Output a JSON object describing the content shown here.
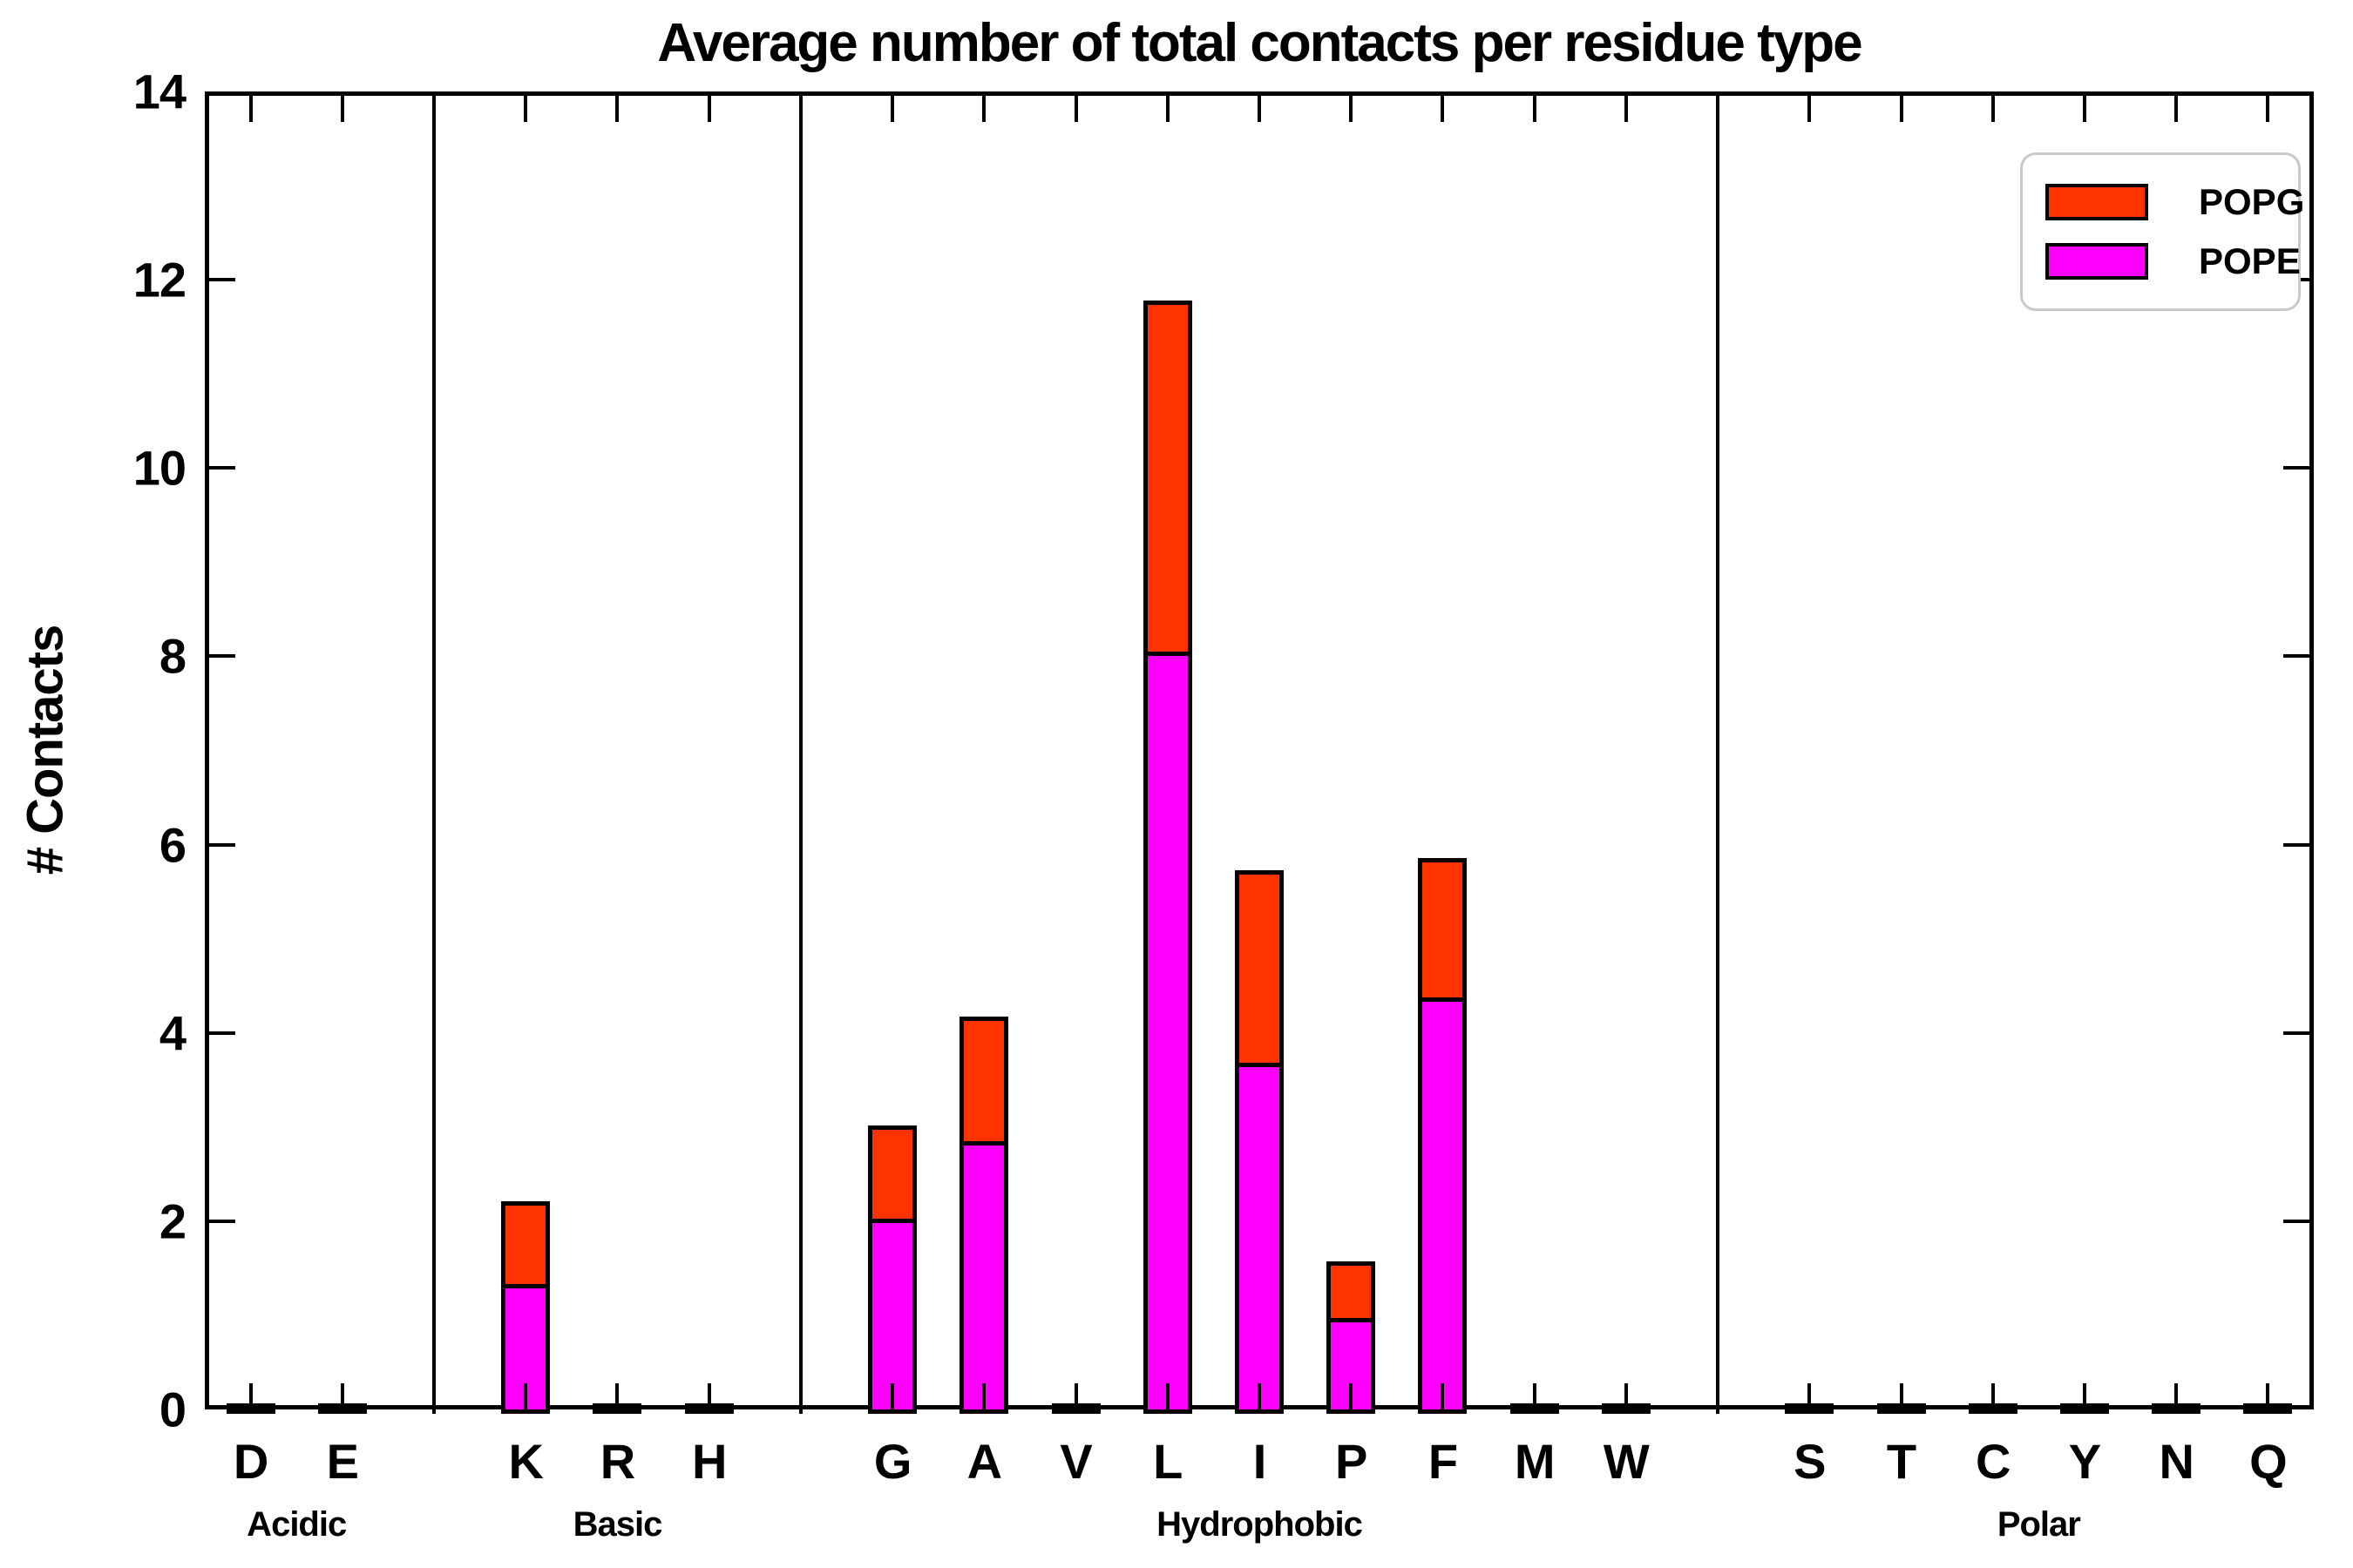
{
  "chart_data": {
    "type": "bar",
    "stacked": true,
    "title": "Average number of total contacts per residue type",
    "ylabel": "# Contacts",
    "xlabel": "",
    "ylim": [
      0,
      14
    ],
    "yticks": [
      0,
      2,
      4,
      6,
      8,
      10,
      12,
      14
    ],
    "grid": false,
    "background": "#FFFFFF",
    "axis_color": "#000000",
    "groups": [
      {
        "label": "Acidic",
        "residues": [
          "D",
          "E"
        ]
      },
      {
        "label": "Basic",
        "residues": [
          "K",
          "R",
          "H"
        ]
      },
      {
        "label": "Hydrophobic",
        "residues": [
          "G",
          "A",
          "V",
          "L",
          "I",
          "P",
          "F",
          "M",
          "W"
        ]
      },
      {
        "label": "Polar",
        "residues": [
          "S",
          "T",
          "C",
          "Y",
          "N",
          "Q"
        ]
      }
    ],
    "categories": [
      "D",
      "E",
      "K",
      "R",
      "H",
      "G",
      "A",
      "V",
      "L",
      "I",
      "P",
      "F",
      "M",
      "W",
      "S",
      "T",
      "C",
      "Y",
      "N",
      "Q"
    ],
    "series": [
      {
        "name": "POPE",
        "color": "#FF00FF",
        "values": [
          0.02,
          0.02,
          1.31,
          0.02,
          0.02,
          2.01,
          2.83,
          0.02,
          8.03,
          3.67,
          0.95,
          4.36,
          0.02,
          0.03,
          0.02,
          0.02,
          0.02,
          0.03,
          0.02,
          0.02
        ]
      },
      {
        "name": "POPG",
        "color": "#FF3300",
        "values": [
          0.01,
          0.01,
          0.9,
          0.01,
          0.01,
          1.01,
          1.34,
          0.01,
          3.75,
          2.06,
          0.62,
          1.5,
          0.01,
          0.01,
          0.01,
          0.01,
          0.01,
          0.01,
          0.01,
          0.01
        ]
      }
    ],
    "legend": {
      "position": "upper right",
      "order": [
        "POPG",
        "POPE"
      ]
    }
  }
}
